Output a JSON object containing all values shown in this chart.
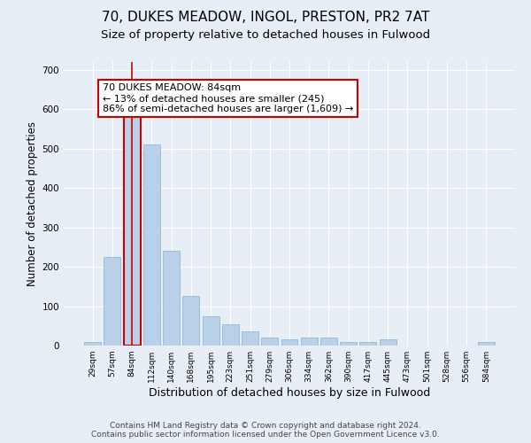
{
  "title1": "70, DUKES MEADOW, INGOL, PRESTON, PR2 7AT",
  "title2": "Size of property relative to detached houses in Fulwood",
  "xlabel": "Distribution of detached houses by size in Fulwood",
  "ylabel": "Number of detached properties",
  "categories": [
    "29sqm",
    "57sqm",
    "84sqm",
    "112sqm",
    "140sqm",
    "168sqm",
    "195sqm",
    "223sqm",
    "251sqm",
    "279sqm",
    "306sqm",
    "334sqm",
    "362sqm",
    "390sqm",
    "417sqm",
    "445sqm",
    "473sqm",
    "501sqm",
    "528sqm",
    "556sqm",
    "584sqm"
  ],
  "values": [
    10,
    225,
    580,
    510,
    240,
    125,
    75,
    55,
    35,
    20,
    15,
    20,
    20,
    10,
    10,
    15,
    0,
    0,
    0,
    0,
    10
  ],
  "bar_color": "#b8d0e8",
  "bar_edge_color": "#8ab0d0",
  "highlight_index": 2,
  "highlight_edge_color": "#cc0000",
  "vline_color": "#cc0000",
  "annotation_box_text": "70 DUKES MEADOW: 84sqm\n← 13% of detached houses are smaller (245)\n86% of semi-detached houses are larger (1,609) →",
  "ylim": [
    0,
    720
  ],
  "yticks": [
    0,
    100,
    200,
    300,
    400,
    500,
    600,
    700
  ],
  "background_color": "#e8eef5",
  "plot_bg_color": "#e8eef5",
  "footer_line1": "Contains HM Land Registry data © Crown copyright and database right 2024.",
  "footer_line2": "Contains public sector information licensed under the Open Government Licence v3.0.",
  "title1_fontsize": 11,
  "title2_fontsize": 9.5,
  "xlabel_fontsize": 9,
  "ylabel_fontsize": 8.5,
  "annotation_fontsize": 8,
  "footer_fontsize": 6.5
}
